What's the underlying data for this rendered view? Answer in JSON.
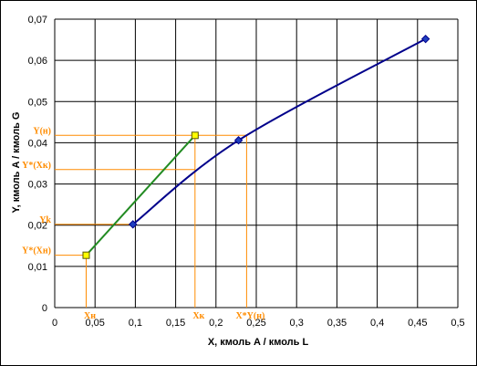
{
  "chart_data": {
    "type": "line",
    "xlabel": "X, кмоль A / кмоль L",
    "ylabel": "Y, кмоль A / кмоль G",
    "xlim": [
      0,
      0.5
    ],
    "ylim": [
      0,
      0.07
    ],
    "x_ticks": [
      0,
      0.05,
      0.1,
      0.15,
      0.2,
      0.25,
      0.3,
      0.35,
      0.4,
      0.45,
      0.5
    ],
    "y_ticks": [
      0,
      0.01,
      0.02,
      0.03,
      0.04,
      0.05,
      0.06,
      0.07
    ],
    "x_tick_labels": [
      "0",
      "0,05",
      "0,1",
      "0,15",
      "0,2",
      "0,25",
      "0,3",
      "0,35",
      "0,4",
      "0,45",
      "0,5"
    ],
    "y_tick_labels": [
      "0",
      "0,01",
      "0,02",
      "0,03",
      "0,04",
      "0,05",
      "0,06",
      "0,07"
    ],
    "grid": true,
    "series": [
      {
        "color": "#00008b",
        "marker": "diamond",
        "points": [
          [
            0.097,
            0.0202
          ],
          [
            0.228,
            0.0406
          ],
          [
            0.46,
            0.0652
          ]
        ]
      },
      {
        "color": "#228b22",
        "marker": "square",
        "marker_color": "#ffff00",
        "points": [
          [
            0.039,
            0.0127
          ],
          [
            0.174,
            0.0418
          ]
        ]
      }
    ],
    "guide_lines_color": "#ff8c00",
    "annotations": {
      "y_axis": [
        {
          "label": "Y(н)",
          "y": 0.0418
        },
        {
          "label": "Y*(Xк)",
          "y": 0.0335
        },
        {
          "label": "Yk",
          "y": 0.0202
        },
        {
          "label": "Y*(Xн)",
          "y": 0.0127
        }
      ],
      "x_axis": [
        {
          "label": "Xн",
          "x": 0.039
        },
        {
          "label": "Xк",
          "x": 0.174
        },
        {
          "label": "X*Y(н)",
          "x": 0.238
        }
      ]
    },
    "guides": [
      {
        "kind": "h",
        "y": 0.0418,
        "x_end": 0.238
      },
      {
        "kind": "h",
        "y": 0.0335,
        "x_end": 0.174
      },
      {
        "kind": "h",
        "y": 0.0202,
        "x_end": 0.097
      },
      {
        "kind": "h",
        "y": 0.0127,
        "x_end": 0.039
      },
      {
        "kind": "v",
        "x": 0.039,
        "y_end": 0.0127
      },
      {
        "kind": "v",
        "x": 0.174,
        "y_end": 0.0418
      },
      {
        "kind": "v",
        "x": 0.238,
        "y_end": 0.0418
      }
    ]
  }
}
